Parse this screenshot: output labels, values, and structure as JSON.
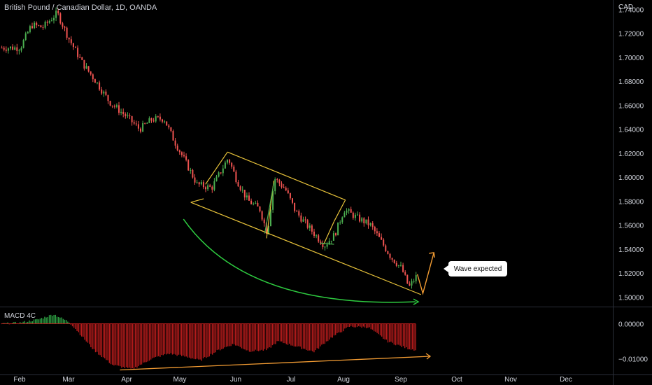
{
  "header": {
    "symbol_title": "British Pound / Canadian Dollar, 1D, OANDA",
    "currency": "CAD"
  },
  "indicator": {
    "label": "MACD 4C"
  },
  "annotation": {
    "text": "Wave expected"
  },
  "colors": {
    "up_candle": "#26a69a",
    "down_candle": "#ef5350",
    "up_bright": "#4caf50",
    "channel": "#e8c33a",
    "curve": "#2ecc40",
    "arrow": "#f39c33",
    "macd_pos": "#2ea043",
    "macd_neg": "#b71c1c"
  },
  "chart_data": [
    {
      "type": "candlestick",
      "title": "British Pound / Canadian Dollar, 1D, OANDA",
      "x_axis": {
        "labels": [
          "Feb",
          "Mar",
          "Apr",
          "May",
          "Jun",
          "Jul",
          "Aug",
          "Sep",
          "Oct",
          "Nov",
          "Dec"
        ]
      },
      "y_axis": {
        "labels": [
          "1.74000",
          "1.72000",
          "1.70000",
          "1.68000",
          "1.66000",
          "1.64000",
          "1.62000",
          "1.60000",
          "1.58000",
          "1.56000",
          "1.54000",
          "1.52000",
          "1.50000"
        ],
        "range": [
          1.492,
          1.742
        ]
      },
      "price_path": [
        {
          "date": "Jan 20",
          "close": 1.708
        },
        {
          "date": "Feb 1",
          "close": 1.708
        },
        {
          "date": "Feb 8",
          "close": 1.727
        },
        {
          "date": "Feb 15",
          "close": 1.725
        },
        {
          "date": "Feb 24",
          "close": 1.737
        },
        {
          "date": "Mar 1",
          "close": 1.715
        },
        {
          "date": "Mar 8",
          "close": 1.695
        },
        {
          "date": "Mar 15",
          "close": 1.68
        },
        {
          "date": "Mar 22",
          "close": 1.663
        },
        {
          "date": "Apr 1",
          "close": 1.65
        },
        {
          "date": "Apr 8",
          "close": 1.64
        },
        {
          "date": "Apr 15",
          "close": 1.648
        },
        {
          "date": "Apr 22",
          "close": 1.649
        },
        {
          "date": "Apr 28",
          "close": 1.63
        },
        {
          "date": "May 4",
          "close": 1.612
        },
        {
          "date": "May 10",
          "close": 1.594
        },
        {
          "date": "May 18",
          "close": 1.591
        },
        {
          "date": "May 27",
          "close": 1.616
        },
        {
          "date": "Jun 1",
          "close": 1.598
        },
        {
          "date": "Jun 7",
          "close": 1.581
        },
        {
          "date": "Jun 14",
          "close": 1.573
        },
        {
          "date": "Jun 18",
          "close": 1.553
        },
        {
          "date": "Jun 22",
          "close": 1.599
        },
        {
          "date": "Jun 28",
          "close": 1.59
        },
        {
          "date": "Jul 3",
          "close": 1.572
        },
        {
          "date": "Jul 8",
          "close": 1.563
        },
        {
          "date": "Jul 14",
          "close": 1.553
        },
        {
          "date": "Jul 20",
          "close": 1.543
        },
        {
          "date": "Jul 26",
          "close": 1.552
        },
        {
          "date": "Aug 1",
          "close": 1.573
        },
        {
          "date": "Aug 8",
          "close": 1.566
        },
        {
          "date": "Aug 15",
          "close": 1.56
        },
        {
          "date": "Aug 20",
          "close": 1.548
        },
        {
          "date": "Aug 26",
          "close": 1.533
        },
        {
          "date": "Sep 1",
          "close": 1.524
        },
        {
          "date": "Sep 5",
          "close": 1.508
        },
        {
          "date": "Sep 9",
          "close": 1.517
        }
      ]
    },
    {
      "type": "bar",
      "title": "MACD 4C",
      "y_axis": {
        "labels": [
          "0.00000",
          "−0.01000"
        ],
        "range": [
          -0.0145,
          0.0045
        ]
      },
      "histogram_path": [
        {
          "date": "Jan 20",
          "value": 0.0
        },
        {
          "date": "Feb 1",
          "value": 0.0003
        },
        {
          "date": "Feb 12",
          "value": 0.0012
        },
        {
          "date": "Feb 22",
          "value": 0.0027
        },
        {
          "date": "Mar 1",
          "value": 0.0005
        },
        {
          "date": "Mar 4",
          "value": -0.0012
        },
        {
          "date": "Mar 14",
          "value": -0.0075
        },
        {
          "date": "Mar 24",
          "value": -0.0118
        },
        {
          "date": "Apr 4",
          "value": -0.013
        },
        {
          "date": "Apr 15",
          "value": -0.01
        },
        {
          "date": "Apr 25",
          "value": -0.0085
        },
        {
          "date": "May 5",
          "value": -0.0095
        },
        {
          "date": "May 12",
          "value": -0.0105
        },
        {
          "date": "May 22",
          "value": -0.0075
        },
        {
          "date": "May 30",
          "value": -0.0058
        },
        {
          "date": "Jun 8",
          "value": -0.0078
        },
        {
          "date": "Jun 18",
          "value": -0.0075
        },
        {
          "date": "Jun 24",
          "value": -0.005
        },
        {
          "date": "Jul 4",
          "value": -0.0065
        },
        {
          "date": "Jul 14",
          "value": -0.008
        },
        {
          "date": "Jul 24",
          "value": -0.004
        },
        {
          "date": "Aug 4",
          "value": -0.0008
        },
        {
          "date": "Aug 14",
          "value": -0.001
        },
        {
          "date": "Aug 24",
          "value": -0.005
        },
        {
          "date": "Sep 4",
          "value": -0.007
        },
        {
          "date": "Sep 9",
          "value": -0.0075
        }
      ]
    }
  ]
}
